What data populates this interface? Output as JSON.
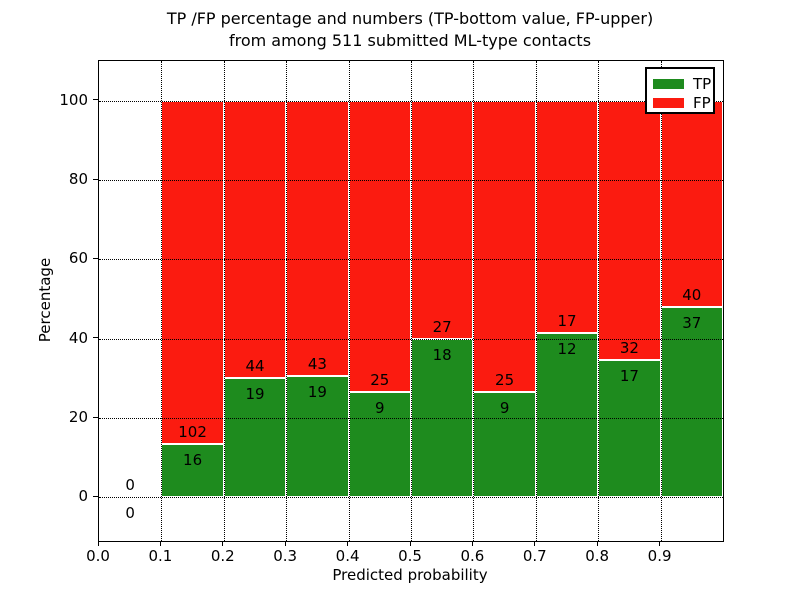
{
  "chart_data": {
    "type": "bar",
    "stacked": true,
    "title": "TP /FP percentage and numbers (TP-bottom value, FP-upper) from among 511 submitted ML-type contacts",
    "title_line1": "TP /FP percentage and numbers (TP-bottom value, FP-upper)",
    "title_line2": "from among 511 submitted ML-type contacts",
    "xlabel": "Predicted probability",
    "ylabel": "Percentage",
    "xlim": [
      0.0,
      1.0
    ],
    "ylim": [
      -11,
      110
    ],
    "grid": true,
    "grid_style": "dotted",
    "legend_position": "upper right",
    "x_ticks": [
      "0.0",
      "0.1",
      "0.2",
      "0.3",
      "0.4",
      "0.5",
      "0.6",
      "0.7",
      "0.8",
      "0.9"
    ],
    "y_ticks": [
      0,
      20,
      40,
      60,
      80,
      100
    ],
    "n_total": 511,
    "series": [
      {
        "name": "TP",
        "color": "#1e8b1e"
      },
      {
        "name": "FP",
        "color": "#fb1b10"
      }
    ],
    "bins": [
      {
        "x_start": 0.0,
        "x_end": 0.1,
        "tp_count": 0,
        "fp_count": 0,
        "tp_pct": 0,
        "fp_pct": 0
      },
      {
        "x_start": 0.1,
        "x_end": 0.2,
        "tp_count": 16,
        "fp_count": 102,
        "tp_pct": 13.56,
        "fp_pct": 86.44
      },
      {
        "x_start": 0.2,
        "x_end": 0.3,
        "tp_count": 19,
        "fp_count": 44,
        "tp_pct": 30.16,
        "fp_pct": 69.84
      },
      {
        "x_start": 0.3,
        "x_end": 0.4,
        "tp_count": 19,
        "fp_count": 43,
        "tp_pct": 30.65,
        "fp_pct": 69.35
      },
      {
        "x_start": 0.4,
        "x_end": 0.5,
        "tp_count": 9,
        "fp_count": 25,
        "tp_pct": 26.47,
        "fp_pct": 73.53
      },
      {
        "x_start": 0.5,
        "x_end": 0.6,
        "tp_count": 18,
        "fp_count": 27,
        "tp_pct": 40.0,
        "fp_pct": 60.0
      },
      {
        "x_start": 0.6,
        "x_end": 0.7,
        "tp_count": 9,
        "fp_count": 25,
        "tp_pct": 26.47,
        "fp_pct": 73.53
      },
      {
        "x_start": 0.7,
        "x_end": 0.8,
        "tp_count": 12,
        "fp_count": 17,
        "tp_pct": 41.38,
        "fp_pct": 58.62
      },
      {
        "x_start": 0.8,
        "x_end": 0.9,
        "tp_count": 17,
        "fp_count": 32,
        "tp_pct": 34.69,
        "fp_pct": 65.31
      },
      {
        "x_start": 0.9,
        "x_end": 1.0,
        "tp_count": 37,
        "fp_count": 40,
        "tp_pct": 48.05,
        "fp_pct": 51.95
      }
    ]
  }
}
